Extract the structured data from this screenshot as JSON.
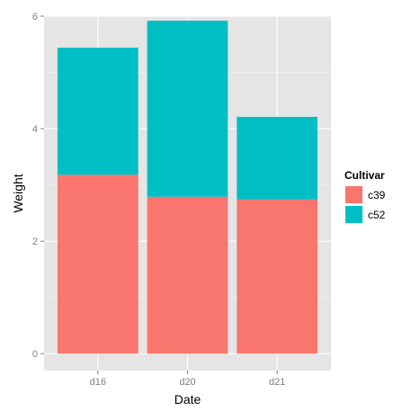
{
  "chart_data": {
    "type": "bar",
    "stacked": true,
    "categories": [
      "d16",
      "d20",
      "d21"
    ],
    "series": [
      {
        "name": "c39",
        "values": [
          3.18,
          2.79,
          2.74
        ],
        "color": "#F8766D"
      },
      {
        "name": "c52",
        "values": [
          2.26,
          3.13,
          1.47
        ],
        "color": "#00BFC4"
      }
    ],
    "xlabel": "Date",
    "ylabel": "Weight",
    "ylim": [
      0,
      6
    ],
    "yticks": [
      0,
      2,
      4,
      6
    ],
    "grid": true,
    "legend": {
      "title": "Cultivar",
      "placement": "right"
    },
    "panel_background": "#E5E5E5",
    "grid_color": "#ffffff"
  }
}
